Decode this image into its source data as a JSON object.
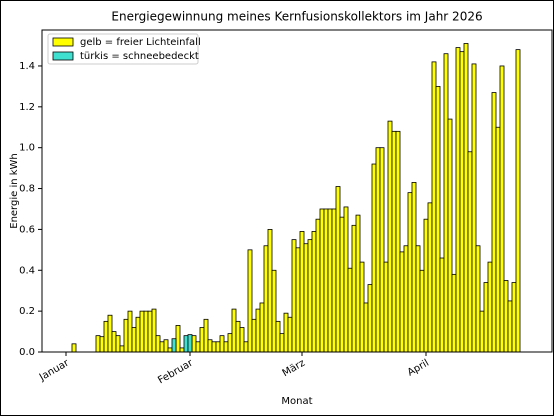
{
  "chart_data": {
    "type": "bar",
    "title": "Energiegewinnung meines Kernfusionskollektors im Jahr 2026",
    "xlabel": "Monat",
    "ylabel": "Energie in kWh",
    "xlim": [
      -6,
      121.5
    ],
    "xticks": [
      {
        "value": 0,
        "label": "Januar"
      },
      {
        "value": 31,
        "label": "Februar"
      },
      {
        "value": 59,
        "label": "März"
      },
      {
        "value": 90,
        "label": "April"
      }
    ],
    "ylim": [
      0,
      1.576
    ],
    "yticks": [
      {
        "value": 0,
        "label": "0.0"
      },
      {
        "value": 0.2,
        "label": "0.2"
      },
      {
        "value": 0.4,
        "label": "0.4"
      },
      {
        "value": 0.6,
        "label": "0.6"
      },
      {
        "value": 0.8,
        "label": "0.8"
      },
      {
        "value": 1.0,
        "label": "1.0"
      },
      {
        "value": 1.2,
        "label": "1.2"
      },
      {
        "value": 1.4,
        "label": "1.4"
      }
    ],
    "legend": "upper left",
    "series": [
      {
        "name": "gelb = freier Lichteinfall",
        "color": "#ffff00",
        "values": [
          0,
          0,
          0.04,
          0,
          0,
          0,
          0,
          0,
          0.08,
          0.075,
          0.15,
          0.18,
          0.1,
          0.08,
          0.03,
          0.16,
          0.2,
          0.12,
          0.17,
          0.2,
          0.2,
          0.2,
          0.21,
          0.08,
          0.05,
          0.06,
          0.02,
          null,
          0.13,
          0.02,
          null,
          null,
          0.08,
          0.05,
          0.12,
          0.16,
          0.06,
          0.05,
          0.05,
          0.08,
          0.05,
          0.09,
          0.21,
          0.15,
          0.12,
          0.05,
          0.5,
          0.16,
          0.21,
          0.24,
          0.52,
          0.6,
          0.4,
          0.15,
          0.09,
          0.19,
          0.17,
          0.55,
          0.51,
          0.59,
          0.53,
          0.55,
          0.59,
          0.65,
          0.7,
          0.7,
          0.7,
          0.7,
          0.81,
          0.66,
          0.71,
          0.41,
          0.62,
          0.67,
          0.44,
          0.24,
          0.33,
          0.92,
          1.0,
          1.0,
          0.44,
          1.13,
          1.08,
          1.08,
          0.49,
          0.52,
          0.78,
          0.83,
          0.52,
          0.4,
          0.65,
          0.73,
          1.42,
          1.3,
          0.46,
          1.46,
          1.14,
          0.38,
          1.49,
          1.47,
          1.51,
          0.98,
          1.41,
          0.52,
          0.2,
          0.34,
          0.44,
          1.27,
          1.1,
          1.4,
          0.35,
          0.25,
          0.34,
          1.48
        ]
      },
      {
        "name": "türkis = schneebedeckt",
        "color": "#40e0d0",
        "values": [
          null,
          null,
          null,
          null,
          null,
          null,
          null,
          null,
          null,
          null,
          null,
          null,
          null,
          null,
          null,
          null,
          null,
          null,
          null,
          null,
          null,
          null,
          null,
          null,
          null,
          null,
          null,
          0.065,
          null,
          null,
          0.08,
          0.085,
          null,
          null,
          null,
          null,
          null,
          null,
          null,
          null,
          null,
          null,
          null,
          null,
          null,
          null,
          null,
          null,
          null,
          null,
          null,
          null,
          null,
          null,
          null,
          null,
          null,
          null,
          null,
          null,
          null,
          null,
          null,
          null,
          null,
          null,
          null,
          null,
          null,
          null,
          null,
          null,
          null,
          null,
          null,
          null,
          null,
          null,
          null,
          null,
          null,
          null,
          null,
          null,
          null,
          null,
          null,
          null,
          null,
          null,
          null,
          null,
          null,
          null,
          null,
          null,
          null,
          null,
          null,
          null,
          null,
          null,
          null,
          null,
          null,
          null,
          null,
          null,
          null,
          null,
          null,
          null,
          null,
          null
        ]
      }
    ]
  }
}
